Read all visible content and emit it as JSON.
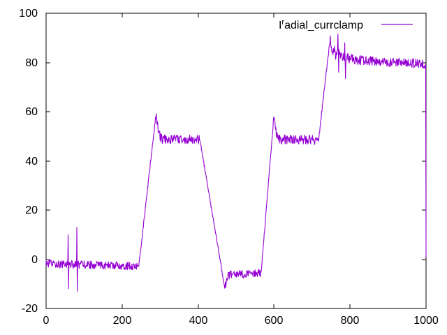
{
  "chart_data": {
    "type": "line",
    "title": "",
    "xlabel": "",
    "ylabel": "",
    "xlim": [
      0,
      1000
    ],
    "ylim": [
      -20,
      100
    ],
    "xticks": [
      0,
      200,
      400,
      600,
      800,
      1000
    ],
    "yticks": [
      -20,
      0,
      20,
      40,
      60,
      80,
      100
    ],
    "grid": false,
    "background": "#ffffff",
    "border_color": "#000000",
    "legend_position": "top-right-inside",
    "series": [
      {
        "name_display": {
          "prefix": "I",
          "sup": "r",
          "rest": "adial_currclamp"
        },
        "color": "#9400d3",
        "summary": "Noisy stepped signal: baseline about -2 until x=244 (glitch spikes to +13/-13 near x=59 and x=81); ramps to peak 58.5 at x=289; noisy plateau about 48.5 until x=405; ramps down to -11.5 at x=470; noisy plateau about -6 until x=566; ramps to peak 57.5 at x=599; noisy plateau about 48.5 until x=717; ramps to peak 90 at x=748; noisy plateau about 80 slowly declining to 79 (spikes to 92 and down to 73 near x=768-788); drops vertically to about 0 at x=1000.",
        "waveform": {
          "x_step": 1,
          "random_seed": 12345,
          "mean_anchors": [
            [
              0,
              -1.8
            ],
            [
              244,
              -2.8
            ],
            [
              289,
              58.5
            ],
            [
              295,
              52
            ],
            [
              303,
              49
            ],
            [
              405,
              48.5
            ],
            [
              470,
              -11.5
            ],
            [
              479,
              -6.5
            ],
            [
              566,
              -5.5
            ],
            [
              599,
              57.5
            ],
            [
              606,
              51
            ],
            [
              615,
              48.7
            ],
            [
              717,
              48.5
            ],
            [
              748,
              90
            ],
            [
              753,
              83.5
            ],
            [
              758,
              85.5
            ],
            [
              763,
              82.5
            ],
            [
              768,
              85
            ],
            [
              775,
              82.5
            ],
            [
              790,
              82
            ],
            [
              820,
              81
            ],
            [
              860,
              80.5
            ],
            [
              910,
              80
            ],
            [
              960,
              79.8
            ],
            [
              999,
              79.3
            ],
            [
              1000,
              1
            ]
          ],
          "noise_regions": [
            {
              "from": 0,
              "to": 240,
              "amp": 1.6
            },
            {
              "from": 240,
              "to": 288,
              "amp": 0.8
            },
            {
              "from": 288,
              "to": 404,
              "amp": 1.9
            },
            {
              "from": 404,
              "to": 469,
              "amp": 0.7
            },
            {
              "from": 469,
              "to": 565,
              "amp": 1.7
            },
            {
              "from": 565,
              "to": 600,
              "amp": 0.8
            },
            {
              "from": 600,
              "to": 716,
              "amp": 1.9
            },
            {
              "from": 716,
              "to": 749,
              "amp": 0.9
            },
            {
              "from": 749,
              "to": 999,
              "amp": 1.9
            }
          ],
          "spikes": [
            {
              "x": 58,
              "y": 10
            },
            {
              "x": 59,
              "y": -12
            },
            {
              "x": 81,
              "y": 13
            },
            {
              "x": 82,
              "y": -13
            },
            {
              "x": 768,
              "y": 91.5
            },
            {
              "x": 770,
              "y": 76
            },
            {
              "x": 786,
              "y": 88
            },
            {
              "x": 788,
              "y": 73.5
            }
          ]
        }
      }
    ]
  }
}
